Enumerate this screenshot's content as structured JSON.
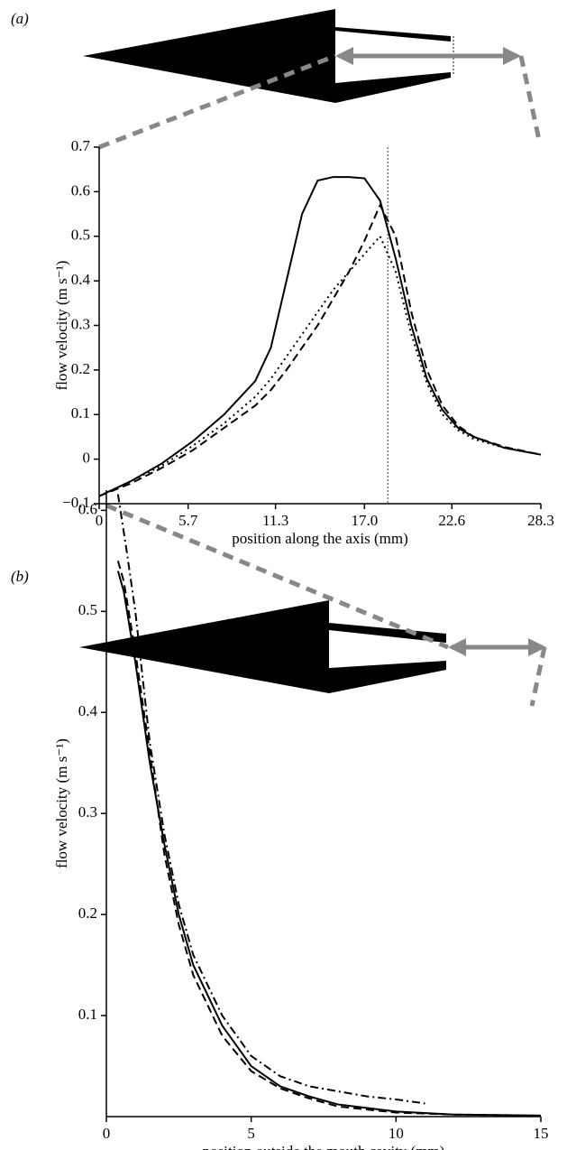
{
  "chart_data": [
    {
      "type": "line",
      "label": "(a)",
      "xlabel": "position along the axis (mm)",
      "ylabel": "flow velocity (m s⁻¹)",
      "x": [
        0,
        2,
        4,
        6,
        8,
        10,
        11,
        12,
        13,
        14,
        15,
        16,
        17,
        18,
        19,
        20,
        21,
        22,
        23,
        24,
        26,
        28.3
      ],
      "series": [
        {
          "color": "#000",
          "dash": "solid",
          "values": [
            -0.083,
            -0.05,
            -0.01,
            0.04,
            0.1,
            0.175,
            0.25,
            0.4,
            0.55,
            0.625,
            0.633,
            0.633,
            0.63,
            0.58,
            0.45,
            0.3,
            0.18,
            0.11,
            0.07,
            0.05,
            0.025,
            0.01
          ]
        },
        {
          "color": "#000",
          "dash": "dotted",
          "values": [
            -0.083,
            -0.05,
            -0.015,
            0.03,
            0.08,
            0.14,
            0.18,
            0.23,
            0.28,
            0.33,
            0.38,
            0.42,
            0.46,
            0.5,
            0.42,
            0.28,
            0.17,
            0.1,
            0.065,
            0.045,
            0.025,
            0.01
          ]
        },
        {
          "color": "#000",
          "dash": "dashed",
          "values": [
            -0.083,
            -0.055,
            -0.02,
            0.02,
            0.07,
            0.12,
            0.155,
            0.2,
            0.25,
            0.3,
            0.36,
            0.42,
            0.49,
            0.57,
            0.5,
            0.33,
            0.2,
            0.12,
            0.075,
            0.05,
            0.027,
            0.01
          ]
        }
      ],
      "vline_x": 18.5,
      "xlim": [
        0,
        28.3
      ],
      "xticks": [
        0,
        5.7,
        11.3,
        {
          "value": 17,
          "label": "17.0"
        },
        22.6,
        28.3
      ],
      "ylim": [
        -0.1,
        0.7
      ],
      "yticks": [
        {
          "value": -0.1,
          "label": "−0.1"
        },
        0,
        0.1,
        0.2,
        0.3,
        0.4,
        0.5,
        0.6,
        0.7
      ]
    },
    {
      "type": "line",
      "label": "(b)",
      "xlabel": "position outside the mouth cavity (mm)",
      "ylabel": "flow velocity (m s⁻¹)",
      "series": [
        {
          "color": "#000",
          "dash": "solid",
          "x": [
            0.4,
            0.6,
            1,
            1.5,
            2,
            2.5,
            3,
            4,
            5,
            6,
            7,
            8,
            10,
            12,
            15
          ],
          "values": [
            0.54,
            0.52,
            0.45,
            0.35,
            0.27,
            0.2,
            0.15,
            0.09,
            0.05,
            0.03,
            0.02,
            0.012,
            0.005,
            0.002,
            0.001
          ]
        },
        {
          "color": "#000",
          "dash": "dashed",
          "x": [
            0.4,
            0.6,
            1,
            1.5,
            2,
            2.5,
            3,
            4,
            5,
            6,
            7,
            8,
            10,
            12,
            15
          ],
          "values": [
            0.55,
            0.53,
            0.46,
            0.36,
            0.26,
            0.19,
            0.14,
            0.08,
            0.045,
            0.028,
            0.018,
            0.01,
            0.004,
            0.002,
            0.001
          ]
        },
        {
          "color": "#000",
          "dash": "dashdot",
          "x": [
            0.4,
            0.7,
            1,
            1.5,
            2,
            2.5,
            3,
            4,
            5,
            6,
            7,
            8,
            9,
            10,
            11
          ],
          "values": [
            0.616,
            0.56,
            0.5,
            0.37,
            0.28,
            0.21,
            0.16,
            0.1,
            0.06,
            0.04,
            0.03,
            0.025,
            0.02,
            0.017,
            0.013
          ]
        }
      ],
      "xlim": [
        0,
        15
      ],
      "xticks": [
        0,
        5,
        10,
        15
      ],
      "ylim": [
        0,
        0.62
      ],
      "yticks": [
        0.1,
        0.2,
        0.3,
        0.4,
        0.5,
        0.6
      ]
    }
  ]
}
